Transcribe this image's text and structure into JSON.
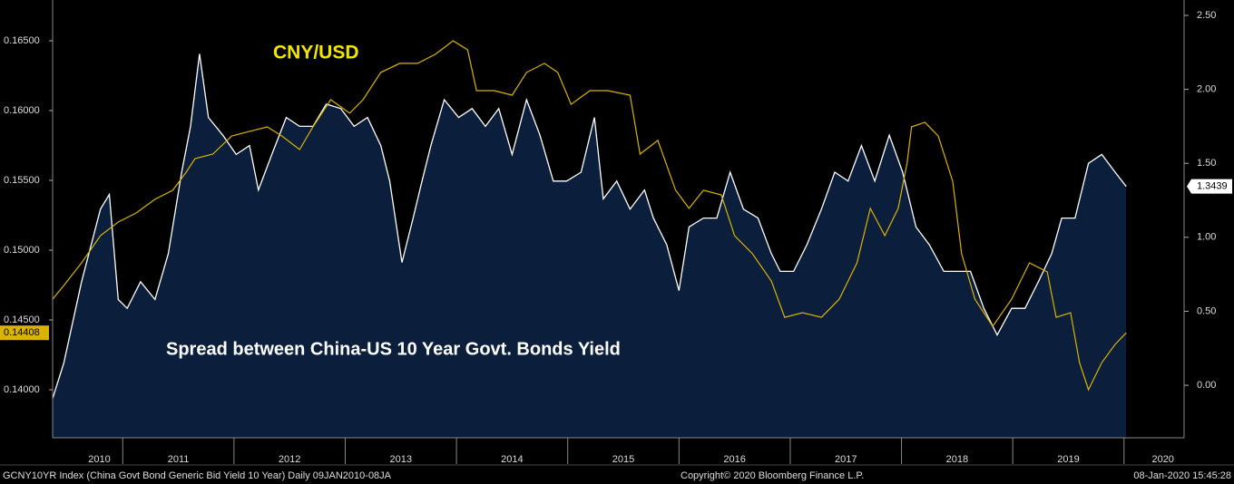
{
  "chart_data": {
    "type": "line",
    "series": [
      {
        "name": "Spread between China-US 10 Year Govt. Bonds Yield",
        "color": "#ffffff",
        "fill": "#0b1f3d",
        "axis": "y2",
        "x": [
          2010.37,
          2010.47,
          2010.63,
          2010.8,
          2010.88,
          2010.96,
          2011.04,
          2011.16,
          2011.29,
          2011.41,
          2011.53,
          2011.61,
          2011.69,
          2011.77,
          2011.9,
          2012.02,
          2012.14,
          2012.22,
          2012.34,
          2012.47,
          2012.59,
          2012.71,
          2012.83,
          2012.96,
          2013.08,
          2013.2,
          2013.32,
          2013.4,
          2013.51,
          2013.61,
          2013.69,
          2013.77,
          2013.89,
          2014.02,
          2014.14,
          2014.26,
          2014.38,
          2014.5,
          2014.63,
          2014.75,
          2014.87,
          2014.99,
          2015.12,
          2015.24,
          2015.32,
          2015.44,
          2015.56,
          2015.69,
          2015.77,
          2015.89,
          2016.0,
          2016.09,
          2016.22,
          2016.34,
          2016.46,
          2016.58,
          2016.71,
          2016.83,
          2016.91,
          2017.03,
          2017.15,
          2017.28,
          2017.4,
          2017.52,
          2017.64,
          2017.76,
          2017.89,
          2018.01,
          2018.13,
          2018.25,
          2018.38,
          2018.5,
          2018.62,
          2018.74,
          2018.86,
          2018.99,
          2019.11,
          2019.23,
          2019.35,
          2019.44,
          2019.56,
          2019.68,
          2019.8,
          2019.92,
          2020.02
        ],
        "values": [
          -0.09,
          0.15,
          0.7,
          1.19,
          1.29,
          0.58,
          0.52,
          0.7,
          0.58,
          0.89,
          1.44,
          1.75,
          2.24,
          1.81,
          1.69,
          1.56,
          1.62,
          1.32,
          1.56,
          1.81,
          1.75,
          1.75,
          1.9,
          1.87,
          1.75,
          1.81,
          1.62,
          1.38,
          0.83,
          1.13,
          1.38,
          1.62,
          1.93,
          1.81,
          1.87,
          1.75,
          1.87,
          1.56,
          1.93,
          1.69,
          1.38,
          1.38,
          1.44,
          1.81,
          1.26,
          1.38,
          1.19,
          1.32,
          1.13,
          0.95,
          0.64,
          1.07,
          1.13,
          1.13,
          1.44,
          1.19,
          1.13,
          0.89,
          0.77,
          0.77,
          0.95,
          1.19,
          1.44,
          1.38,
          1.62,
          1.38,
          1.69,
          1.44,
          1.07,
          0.95,
          0.77,
          0.77,
          0.77,
          0.52,
          0.34,
          0.52,
          0.52,
          0.7,
          0.89,
          1.13,
          1.13,
          1.5,
          1.56,
          1.44,
          1.3439
        ]
      },
      {
        "name": "CNY/USD",
        "color": "#d9b300",
        "axis": "y",
        "x": [
          2010.37,
          2010.47,
          2010.63,
          2010.8,
          2010.96,
          2011.12,
          2011.29,
          2011.45,
          2011.57,
          2011.65,
          2011.81,
          2011.98,
          2012.14,
          2012.3,
          2012.43,
          2012.59,
          2012.71,
          2012.87,
          2013.04,
          2013.16,
          2013.32,
          2013.49,
          2013.65,
          2013.81,
          2013.97,
          2014.1,
          2014.18,
          2014.34,
          2014.5,
          2014.63,
          2014.79,
          2014.91,
          2015.03,
          2015.2,
          2015.36,
          2015.56,
          2015.65,
          2015.81,
          2015.97,
          2016.09,
          2016.22,
          2016.38,
          2016.5,
          2016.66,
          2016.83,
          2016.95,
          2017.11,
          2017.28,
          2017.44,
          2017.6,
          2017.72,
          2017.85,
          2017.97,
          2018.05,
          2018.09,
          2018.21,
          2018.33,
          2018.46,
          2018.54,
          2018.66,
          2018.82,
          2018.99,
          2019.15,
          2019.31,
          2019.39,
          2019.52,
          2019.6,
          2019.68,
          2019.8,
          2019.92,
          2020.02
        ],
        "values": [
          0.14649,
          0.14747,
          0.14909,
          0.15104,
          0.15201,
          0.15266,
          0.15364,
          0.15429,
          0.15558,
          0.15656,
          0.15688,
          0.15818,
          0.15851,
          0.15883,
          0.15818,
          0.15721,
          0.15883,
          0.16078,
          0.15981,
          0.16078,
          0.16273,
          0.16338,
          0.16338,
          0.16403,
          0.165,
          0.16435,
          0.16143,
          0.16143,
          0.1611,
          0.16273,
          0.16338,
          0.16273,
          0.16045,
          0.16143,
          0.16143,
          0.1611,
          0.15688,
          0.15786,
          0.15429,
          0.15299,
          0.15429,
          0.15396,
          0.15104,
          0.14974,
          0.14779,
          0.14519,
          0.14552,
          0.14519,
          0.14649,
          0.14909,
          0.15299,
          0.15104,
          0.15299,
          0.15623,
          0.15883,
          0.15916,
          0.15818,
          0.15493,
          0.14974,
          0.14649,
          0.14454,
          0.14649,
          0.14909,
          0.14844,
          0.14519,
          0.14552,
          0.14195,
          0.14,
          0.14195,
          0.14325,
          0.14408
        ]
      }
    ],
    "xlim": [
      2010.37,
      2020.54
    ],
    "xticks": [
      {
        "value": 2010.79,
        "label": "2010"
      },
      {
        "value": 2011.5,
        "label": "2011"
      },
      {
        "value": 2012.5,
        "label": "2012"
      },
      {
        "value": 2013.5,
        "label": "2013"
      },
      {
        "value": 2014.5,
        "label": "2014"
      },
      {
        "value": 2015.5,
        "label": "2015"
      },
      {
        "value": 2016.5,
        "label": "2016"
      },
      {
        "value": 2017.5,
        "label": "2017"
      },
      {
        "value": 2018.5,
        "label": "2018"
      },
      {
        "value": 2019.5,
        "label": "2019"
      },
      {
        "value": 2020.35,
        "label": "2020"
      }
    ],
    "ylim": [
      0.13656,
      0.16792
    ],
    "yticks": [
      {
        "value": 0.14,
        "label": "0.14000"
      },
      {
        "value": 0.145,
        "label": "0.14500"
      },
      {
        "value": 0.15,
        "label": "0.15000"
      },
      {
        "value": 0.155,
        "label": "0.15500"
      },
      {
        "value": 0.16,
        "label": "0.16000"
      },
      {
        "value": 0.165,
        "label": "0.16500"
      }
    ],
    "y2lim": [
      -0.355,
      2.604
    ],
    "y2ticks": [
      {
        "value": 0,
        "label": "0.00"
      },
      {
        "value": 0.5,
        "label": "0.50"
      },
      {
        "value": 1,
        "label": "1.00"
      },
      {
        "value": 1.5,
        "label": "1.50"
      },
      {
        "value": 2,
        "label": "2.00"
      },
      {
        "value": 2.5,
        "label": "2.50"
      }
    ],
    "footer": {
      "left": "GCNY10YR Index (China Govt Bond Generic Bid Yield 10 Year)  Daily 09JAN2010-08JA",
      "center": "Copyright© 2020 Bloomberg Finance L.P.",
      "right": "08-Jan-2020 15:45:28"
    }
  }
}
